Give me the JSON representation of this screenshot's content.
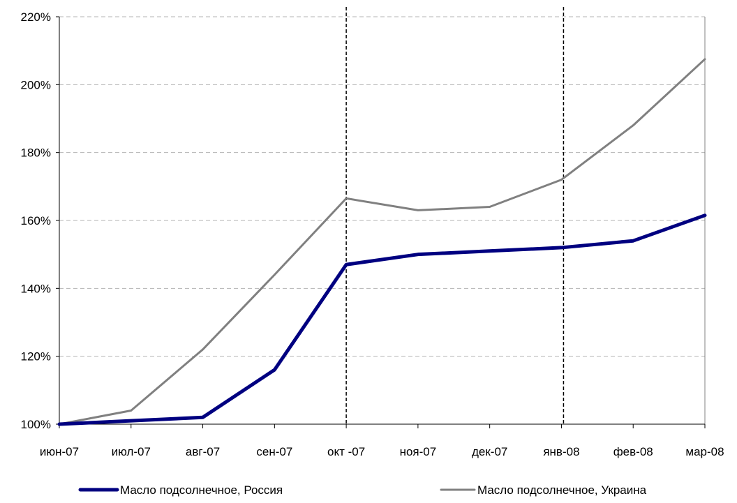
{
  "chart_data": {
    "type": "line",
    "title": "",
    "xlabel": "",
    "ylabel": "",
    "categories": [
      "июн-07",
      "июл-07",
      "авг-07",
      "сен-07",
      "окт -07",
      "ноя-07",
      "дек-07",
      "янв-08",
      "фев-08",
      "мар-08"
    ],
    "ylim": [
      100,
      220
    ],
    "yticks": [
      100,
      120,
      140,
      160,
      180,
      200,
      220
    ],
    "ytick_labels": [
      "100%",
      "120%",
      "140%",
      "160%",
      "180%",
      "200%",
      "220%"
    ],
    "grid": "horizontal dashed",
    "legend_position": "bottom",
    "vertical_markers": [
      "окт -07",
      "янв-08"
    ],
    "series": [
      {
        "name": "Масло подсолнечное, Россия",
        "color": "#000080",
        "values": [
          100,
          101,
          102,
          116,
          147,
          150,
          151,
          152,
          154,
          161.5
        ]
      },
      {
        "name": "Масло подсолнечное, Украина",
        "color": "#808080",
        "values": [
          100,
          104,
          122,
          144,
          166.5,
          163,
          164,
          172,
          188,
          207.5
        ]
      }
    ]
  }
}
